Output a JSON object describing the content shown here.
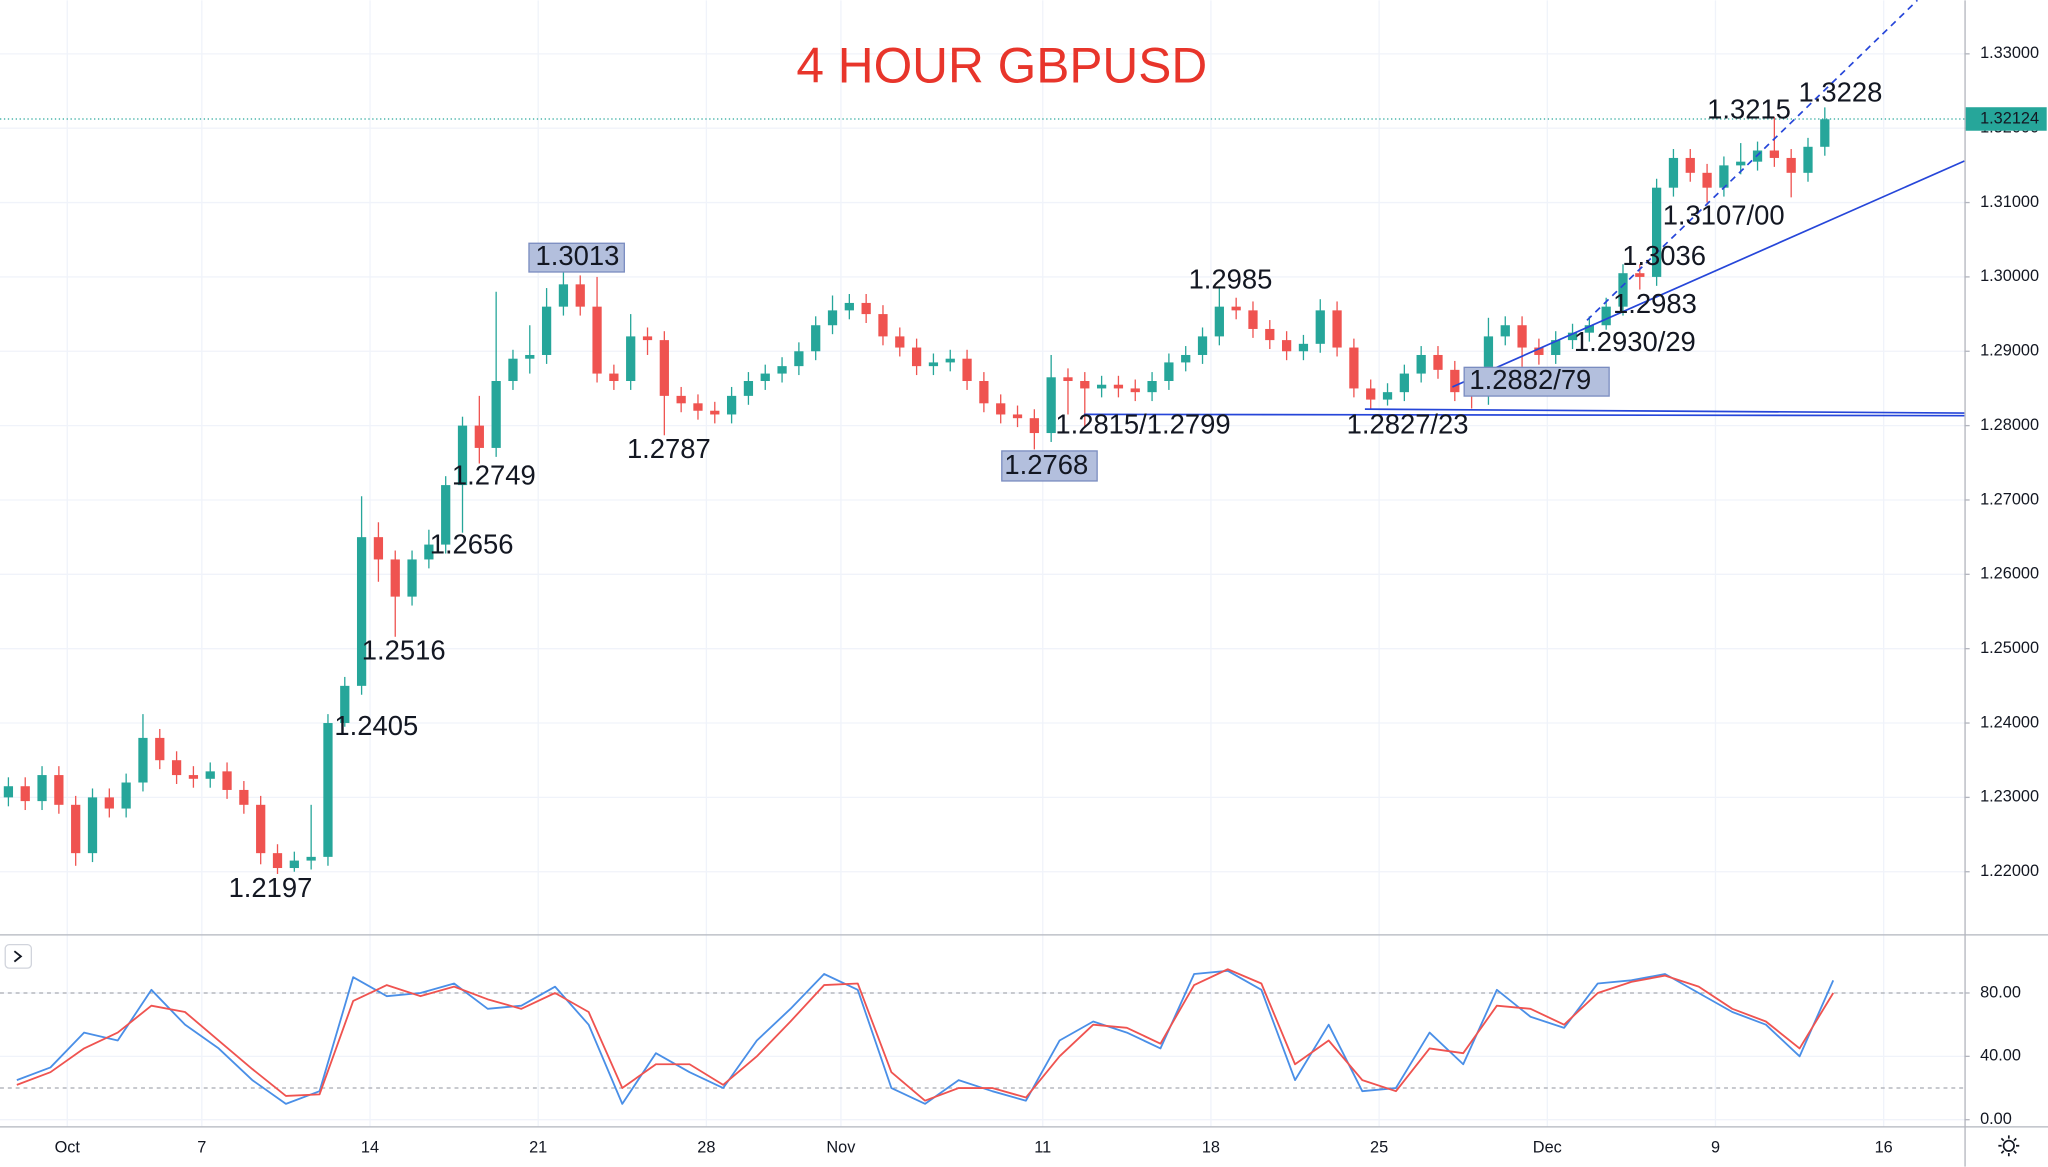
{
  "chart_data": [
    {
      "type": "candlestick",
      "title": "4 HOUR GBPUSD",
      "x": [
        -1.75,
        -1.25,
        -0.75,
        -0.25,
        0.25,
        0.75,
        1.25,
        1.75,
        2.25,
        2.75,
        3.25,
        3.75,
        4.25,
        4.75,
        5.25,
        5.75,
        6.25,
        6.75,
        7.25,
        7.75,
        8.25,
        8.75,
        9.25,
        9.75,
        10.25,
        10.75,
        11.25,
        11.75,
        12.25,
        12.75,
        13.25,
        13.75,
        14.25,
        14.75,
        15.25,
        15.75,
        16.25,
        16.75,
        17.25,
        17.75,
        18.25,
        18.75,
        19.25,
        19.75,
        20.25,
        20.75,
        21.25,
        21.75,
        22.25,
        22.75,
        23.25,
        23.75,
        24.25,
        24.75,
        25.25,
        25.75,
        26.25,
        26.75,
        27.25,
        27.75,
        28.25,
        28.75,
        29.25,
        29.75,
        30.25,
        30.75,
        31.25,
        31.75,
        32.25,
        32.75,
        33.25,
        33.75,
        34.25,
        34.75,
        35.25,
        35.75,
        36.25,
        36.75,
        37.25,
        37.75,
        38.25,
        38.75,
        39.25,
        39.75,
        40.25,
        40.75,
        41.25,
        41.75,
        42.25,
        42.75,
        43.25,
        43.75,
        44.25,
        44.75,
        45.25,
        45.75,
        46.25,
        46.75,
        47.25,
        47.75,
        48.25,
        48.75,
        49.25,
        49.75,
        50.25,
        50.75,
        51.25,
        51.75,
        52.25
      ],
      "open": [
        1.23,
        1.2315,
        1.2295,
        1.233,
        1.229,
        1.2225,
        1.23,
        1.2285,
        1.232,
        1.238,
        1.235,
        1.233,
        1.2325,
        1.2335,
        1.231,
        1.229,
        1.2225,
        1.2205,
        1.2215,
        1.222,
        1.24,
        1.245,
        1.265,
        1.262,
        1.257,
        1.262,
        1.264,
        1.272,
        1.28,
        1.277,
        1.286,
        1.289,
        1.2895,
        1.296,
        1.299,
        1.296,
        1.287,
        1.286,
        1.292,
        1.2915,
        1.284,
        1.283,
        1.282,
        1.2815,
        1.284,
        1.286,
        1.287,
        1.288,
        1.29,
        1.2935,
        1.2955,
        1.2965,
        1.295,
        1.292,
        1.2905,
        1.288,
        1.2885,
        1.289,
        1.286,
        1.283,
        1.2815,
        1.281,
        1.279,
        1.2865,
        1.286,
        1.285,
        1.2855,
        1.285,
        1.2845,
        1.286,
        1.2885,
        1.2895,
        1.292,
        1.296,
        1.2955,
        1.293,
        1.2915,
        1.29,
        1.291,
        1.2955,
        1.2905,
        1.285,
        1.2835,
        1.2845,
        1.287,
        1.2895,
        1.2875,
        1.2845,
        1.284,
        1.292,
        1.2935,
        1.2905,
        1.2895,
        1.2915,
        1.2925,
        1.2935,
        1.296,
        1.3005,
        1.3,
        1.312,
        1.316,
        1.314,
        1.312,
        1.315,
        1.3155,
        1.317,
        1.316,
        1.314,
        1.3175
      ],
      "high": [
        1.2327,
        1.2327,
        1.2342,
        1.2342,
        1.2302,
        1.2312,
        1.2312,
        1.2332,
        1.2412,
        1.2392,
        1.2362,
        1.2342,
        1.2347,
        1.2347,
        1.2322,
        1.2302,
        1.2237,
        1.2227,
        1.229,
        1.2412,
        1.2462,
        1.2705,
        1.267,
        1.2632,
        1.2632,
        1.266,
        1.2732,
        1.2812,
        1.284,
        1.298,
        1.2902,
        1.2935,
        1.2985,
        1.3013,
        1.3002,
        1.3,
        1.2882,
        1.295,
        1.2932,
        1.2927,
        1.2852,
        1.2842,
        1.2832,
        1.2852,
        1.2872,
        1.2882,
        1.2892,
        1.2912,
        1.2947,
        1.2975,
        1.2977,
        1.2977,
        1.2962,
        1.2932,
        1.2917,
        1.2897,
        1.2902,
        1.2902,
        1.2872,
        1.2842,
        1.2827,
        1.2822,
        1.2895,
        1.2877,
        1.2872,
        1.2867,
        1.2867,
        1.2862,
        1.2872,
        1.2897,
        1.2907,
        1.2932,
        1.2985,
        1.2972,
        1.2967,
        1.2942,
        1.2927,
        1.2922,
        1.297,
        1.2967,
        1.2917,
        1.2862,
        1.2857,
        1.2882,
        1.2907,
        1.2907,
        1.2887,
        1.2857,
        1.2945,
        1.2947,
        1.2947,
        1.2917,
        1.2927,
        1.2937,
        1.2947,
        1.2972,
        1.3017,
        1.3017,
        1.3132,
        1.3172,
        1.3172,
        1.3152,
        1.3162,
        1.318,
        1.3182,
        1.3215,
        1.3172,
        1.3187,
        1.3228
      ],
      "low": [
        1.2288,
        1.2283,
        1.2283,
        1.2278,
        1.2208,
        1.2213,
        1.2273,
        1.2273,
        1.2308,
        1.2338,
        1.2318,
        1.2313,
        1.2313,
        1.2298,
        1.2278,
        1.221,
        1.2197,
        1.22,
        1.2203,
        1.2208,
        1.2395,
        1.2438,
        1.259,
        1.2516,
        1.2558,
        1.2608,
        1.2628,
        1.2656,
        1.2749,
        1.2758,
        1.2848,
        1.287,
        1.2883,
        1.2948,
        1.2948,
        1.2858,
        1.2848,
        1.2848,
        1.2895,
        1.2787,
        1.2818,
        1.2808,
        1.2803,
        1.2803,
        1.2828,
        1.2848,
        1.2858,
        1.2868,
        1.2888,
        1.2923,
        1.2943,
        1.2938,
        1.2908,
        1.2893,
        1.2868,
        1.2868,
        1.2873,
        1.2848,
        1.2818,
        1.2803,
        1.2798,
        1.2768,
        1.2778,
        1.2815,
        1.2799,
        1.2838,
        1.2838,
        1.2833,
        1.2833,
        1.2848,
        1.2873,
        1.2883,
        1.2908,
        1.2943,
        1.2918,
        1.2903,
        1.2888,
        1.2888,
        1.2898,
        1.2893,
        1.2838,
        1.2823,
        1.2827,
        1.2833,
        1.2858,
        1.2863,
        1.2833,
        1.2823,
        1.2828,
        1.2908,
        1.2879,
        1.2882,
        1.2883,
        1.2903,
        1.2913,
        1.2929,
        1.2948,
        1.2983,
        1.2988,
        1.3108,
        1.3128,
        1.31,
        1.3108,
        1.3138,
        1.3143,
        1.3148,
        1.3107,
        1.3128,
        1.3163
      ],
      "close": [
        1.2315,
        1.2295,
        1.233,
        1.229,
        1.2225,
        1.23,
        1.2285,
        1.232,
        1.238,
        1.235,
        1.233,
        1.2325,
        1.2335,
        1.231,
        1.229,
        1.2225,
        1.2205,
        1.2215,
        1.222,
        1.24,
        1.245,
        1.265,
        1.262,
        1.257,
        1.262,
        1.264,
        1.272,
        1.28,
        1.277,
        1.286,
        1.289,
        1.2895,
        1.296,
        1.299,
        1.296,
        1.287,
        1.286,
        1.292,
        1.2915,
        1.284,
        1.283,
        1.282,
        1.2815,
        1.284,
        1.286,
        1.287,
        1.288,
        1.29,
        1.2935,
        1.2955,
        1.2965,
        1.295,
        1.292,
        1.2905,
        1.288,
        1.2885,
        1.289,
        1.286,
        1.283,
        1.2815,
        1.281,
        1.279,
        1.2865,
        1.286,
        1.285,
        1.2855,
        1.285,
        1.2845,
        1.286,
        1.2885,
        1.2895,
        1.292,
        1.296,
        1.2955,
        1.293,
        1.2915,
        1.29,
        1.291,
        1.2955,
        1.2905,
        1.285,
        1.2835,
        1.2845,
        1.287,
        1.2895,
        1.2875,
        1.2845,
        1.284,
        1.292,
        1.2935,
        1.2905,
        1.2895,
        1.2915,
        1.2925,
        1.2935,
        1.296,
        1.3005,
        1.3,
        1.312,
        1.316,
        1.314,
        1.312,
        1.315,
        1.3155,
        1.317,
        1.316,
        1.314,
        1.3175,
        1.3212
      ],
      "up_color": "#26a69a",
      "down_color": "#ef5350",
      "xlim": [
        -2,
        56.4
      ],
      "ylim": [
        1.2116,
        1.3372
      ],
      "yticks": [
        {
          "value": 1.22,
          "label": "1.22000"
        },
        {
          "value": 1.23,
          "label": "1.23000"
        },
        {
          "value": 1.24,
          "label": "1.24000"
        },
        {
          "value": 1.25,
          "label": "1.25000"
        },
        {
          "value": 1.26,
          "label": "1.26000"
        },
        {
          "value": 1.27,
          "label": "1.27000"
        },
        {
          "value": 1.28,
          "label": "1.28000"
        },
        {
          "value": 1.29,
          "label": "1.29000"
        },
        {
          "value": 1.3,
          "label": "1.30000"
        },
        {
          "value": 1.31,
          "label": "1.31000"
        },
        {
          "value": 1.32,
          "label": "1.32000"
        },
        {
          "value": 1.33,
          "label": "1.33000"
        }
      ],
      "grid": true,
      "last_price": 1.32124,
      "last_price_color": "#26a69a",
      "annotations": [
        "1.3013",
        "1.2985",
        "1.3215",
        "1.3228",
        "1.3107/00",
        "1.3036",
        "1.2983",
        "1.2930/29",
        "1.2882/79",
        "1.2827/23",
        "1.2815/1.2799",
        "1.2768",
        "1.2787",
        "1.2749",
        "1.2656",
        "1.2516",
        "1.2405",
        "1.2197"
      ]
    },
    {
      "type": "line",
      "x": [
        -1.5,
        -0.5,
        0.5,
        1.5,
        2.5,
        3.5,
        4.5,
        5.5,
        6.5,
        7.5,
        8.5,
        9.5,
        10.5,
        11.5,
        12.5,
        13.5,
        14.5,
        15.5,
        16.5,
        17.5,
        18.5,
        19.5,
        20.5,
        21.5,
        22.5,
        23.5,
        24.5,
        25.5,
        26.5,
        27.5,
        28.5,
        29.5,
        30.5,
        31.5,
        32.5,
        33.5,
        34.5,
        35.5,
        36.5,
        37.5,
        38.5,
        39.5,
        40.5,
        41.5,
        42.5,
        43.5,
        44.5,
        45.5,
        46.5,
        47.5,
        48.5,
        49.5,
        50.5,
        51.5,
        52.5
      ],
      "series": [
        {
          "color": "#4a8fe7",
          "values": [
            25,
            33,
            55,
            50,
            82,
            60,
            45,
            25,
            10,
            18,
            90,
            78,
            80,
            86,
            70,
            72,
            84,
            60,
            10,
            42,
            30,
            20,
            50,
            70,
            92,
            82,
            20,
            10,
            25,
            18,
            12,
            50,
            62,
            55,
            45,
            92,
            94,
            82,
            25,
            60,
            18,
            20,
            55,
            35,
            82,
            65,
            58,
            86,
            88,
            92,
            80,
            68,
            60,
            40,
            88
          ]
        },
        {
          "color": "#ef5350",
          "values": [
            22,
            30,
            45,
            55,
            72,
            68,
            50,
            32,
            15,
            16,
            75,
            85,
            78,
            84,
            76,
            70,
            80,
            68,
            20,
            35,
            35,
            22,
            40,
            62,
            85,
            86,
            30,
            12,
            20,
            20,
            14,
            40,
            60,
            58,
            48,
            85,
            95,
            86,
            35,
            50,
            25,
            18,
            45,
            42,
            72,
            70,
            60,
            80,
            87,
            91,
            84,
            70,
            62,
            45,
            80
          ]
        }
      ],
      "xlim": [
        -2,
        56.4
      ],
      "ylim": [
        -4.1,
        116.3
      ],
      "yticks": [
        {
          "value": 0,
          "label": "0.00"
        },
        {
          "value": 40,
          "label": "40.00"
        },
        {
          "value": 80,
          "label": "80.00"
        }
      ],
      "bands": [
        20,
        80
      ],
      "xticks": [
        {
          "value": 0,
          "label": "Oct"
        },
        {
          "value": 4,
          "label": "7"
        },
        {
          "value": 9,
          "label": "14"
        },
        {
          "value": 14,
          "label": "21"
        },
        {
          "value": 19,
          "label": "28"
        },
        {
          "value": 23,
          "label": "Nov"
        },
        {
          "value": 29,
          "label": "11"
        },
        {
          "value": 34,
          "label": "18"
        },
        {
          "value": 39,
          "label": "25"
        },
        {
          "value": 44,
          "label": "Dec"
        },
        {
          "value": 49,
          "label": "9"
        },
        {
          "value": 54,
          "label": "16"
        }
      ]
    }
  ]
}
